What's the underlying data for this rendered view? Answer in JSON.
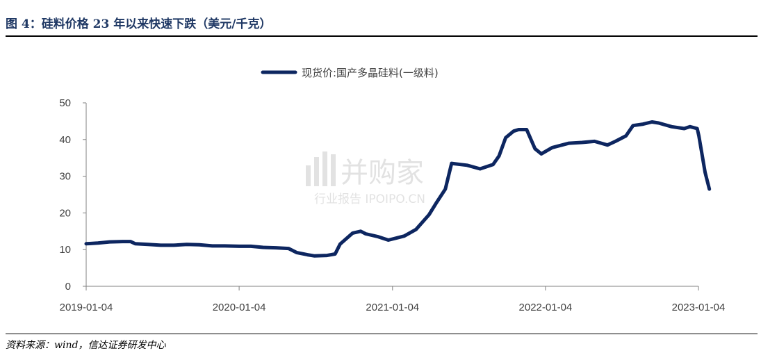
{
  "header": {
    "title": "图 4：硅料价格 23 年以来快速下跌（美元/千克）"
  },
  "footer": {
    "source": "资料来源：wind，信达证券研发中心"
  },
  "watermark": {
    "brand": "并购家",
    "sub": "行业报告 IPOIPO.CN",
    "color": "#d9d9d9"
  },
  "chart_data": {
    "type": "line",
    "title": "",
    "xlabel": "",
    "ylabel": "",
    "ylim": [
      0,
      50
    ],
    "yticks": [
      0,
      10,
      20,
      30,
      40,
      50
    ],
    "xticks": [
      "2019-01-04",
      "2020-01-04",
      "2021-01-04",
      "2022-01-04",
      "2023-01-04"
    ],
    "grid": false,
    "legend_position": "top-center",
    "series": [
      {
        "name": "现货价:国产多晶硅料(一级料)",
        "color": "#0d2660",
        "points": [
          [
            "2019-01-04",
            11.6
          ],
          [
            "2019-02-01",
            11.8
          ],
          [
            "2019-03-01",
            12.1
          ],
          [
            "2019-04-01",
            12.2
          ],
          [
            "2019-04-20",
            12.2
          ],
          [
            "2019-05-01",
            11.6
          ],
          [
            "2019-06-01",
            11.4
          ],
          [
            "2019-07-01",
            11.2
          ],
          [
            "2019-08-01",
            11.2
          ],
          [
            "2019-09-01",
            11.4
          ],
          [
            "2019-10-01",
            11.3
          ],
          [
            "2019-11-01",
            11.0
          ],
          [
            "2019-12-01",
            11.0
          ],
          [
            "2020-01-04",
            10.9
          ],
          [
            "2020-02-01",
            10.9
          ],
          [
            "2020-03-01",
            10.6
          ],
          [
            "2020-04-01",
            10.5
          ],
          [
            "2020-05-01",
            10.3
          ],
          [
            "2020-05-20",
            9.2
          ],
          [
            "2020-06-15",
            8.6
          ],
          [
            "2020-07-01",
            8.3
          ],
          [
            "2020-08-01",
            8.4
          ],
          [
            "2020-08-20",
            8.8
          ],
          [
            "2020-09-01",
            11.5
          ],
          [
            "2020-10-01",
            14.5
          ],
          [
            "2020-10-20",
            15.0
          ],
          [
            "2020-11-01",
            14.3
          ],
          [
            "2020-12-01",
            13.5
          ],
          [
            "2020-12-25",
            12.6
          ],
          [
            "2021-01-15",
            13.2
          ],
          [
            "2021-02-01",
            13.7
          ],
          [
            "2021-03-01",
            15.5
          ],
          [
            "2021-04-01",
            19.5
          ],
          [
            "2021-04-20",
            23.0
          ],
          [
            "2021-05-10",
            26.5
          ],
          [
            "2021-05-25",
            33.5
          ],
          [
            "2021-06-15",
            33.2
          ],
          [
            "2021-07-01",
            33.0
          ],
          [
            "2021-08-01",
            32.0
          ],
          [
            "2021-09-01",
            33.2
          ],
          [
            "2021-09-15",
            35.5
          ],
          [
            "2021-10-01",
            40.5
          ],
          [
            "2021-10-20",
            42.3
          ],
          [
            "2021-11-01",
            42.7
          ],
          [
            "2021-11-20",
            42.7
          ],
          [
            "2021-12-10",
            37.5
          ],
          [
            "2021-12-25",
            36.1
          ],
          [
            "2022-01-20",
            37.8
          ],
          [
            "2022-03-01",
            39.0
          ],
          [
            "2022-04-01",
            39.2
          ],
          [
            "2022-05-01",
            39.5
          ],
          [
            "2022-06-01",
            38.5
          ],
          [
            "2022-06-20",
            39.5
          ],
          [
            "2022-07-15",
            41.0
          ],
          [
            "2022-08-01",
            43.8
          ],
          [
            "2022-08-25",
            44.2
          ],
          [
            "2022-09-15",
            44.8
          ],
          [
            "2022-10-01",
            44.5
          ],
          [
            "2022-11-01",
            43.5
          ],
          [
            "2022-12-01",
            43.0
          ],
          [
            "2022-12-15",
            43.5
          ],
          [
            "2023-01-01",
            43.0
          ],
          [
            "2023-01-05",
            41.0
          ],
          [
            "2023-01-20",
            31.0
          ],
          [
            "2023-01-30",
            26.5
          ]
        ]
      }
    ]
  }
}
